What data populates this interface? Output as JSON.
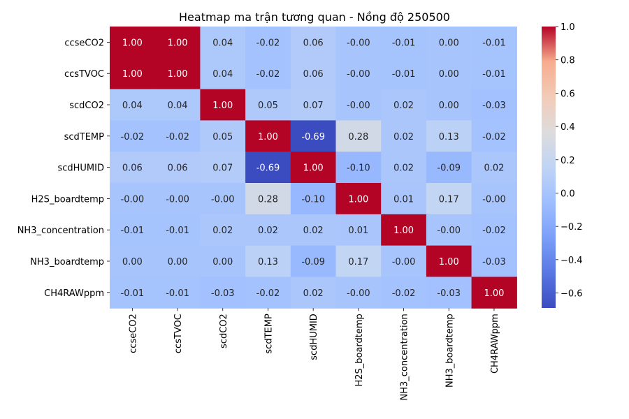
{
  "chart_data": {
    "type": "heatmap",
    "title": "Heatmap ma trận tương quan - Nồng độ 250500",
    "labels": [
      "ccseCO2",
      "ccsTVOC",
      "scdCO2",
      "scdTEMP",
      "scdHUMID",
      "H2S_boardtemp",
      "NH3_concentration",
      "NH3_boardtemp",
      "CH4RAWppm"
    ],
    "values": [
      [
        1.0,
        1.0,
        0.04,
        -0.02,
        0.06,
        -0.0,
        -0.01,
        0.0,
        -0.01
      ],
      [
        1.0,
        1.0,
        0.04,
        -0.02,
        0.06,
        -0.0,
        -0.01,
        0.0,
        -0.01
      ],
      [
        0.04,
        0.04,
        1.0,
        0.05,
        0.07,
        -0.0,
        0.02,
        0.0,
        -0.03
      ],
      [
        -0.02,
        -0.02,
        0.05,
        1.0,
        -0.69,
        0.28,
        0.02,
        0.13,
        -0.02
      ],
      [
        0.06,
        0.06,
        0.07,
        -0.69,
        1.0,
        -0.1,
        0.02,
        -0.09,
        0.02
      ],
      [
        -0.0,
        -0.0,
        -0.0,
        0.28,
        -0.1,
        1.0,
        0.01,
        0.17,
        -0.0
      ],
      [
        -0.01,
        -0.01,
        0.02,
        0.02,
        0.02,
        0.01,
        1.0,
        -0.0,
        -0.02
      ],
      [
        0.0,
        0.0,
        0.0,
        0.13,
        -0.09,
        0.17,
        -0.0,
        1.0,
        -0.03
      ],
      [
        -0.01,
        -0.01,
        -0.03,
        -0.02,
        0.02,
        -0.0,
        -0.02,
        -0.03,
        1.0
      ]
    ],
    "value_labels": [
      [
        "1.00",
        "1.00",
        "0.04",
        "-0.02",
        "0.06",
        "-0.00",
        "-0.01",
        "0.00",
        "-0.01"
      ],
      [
        "1.00",
        "1.00",
        "0.04",
        "-0.02",
        "0.06",
        "-0.00",
        "-0.01",
        "0.00",
        "-0.01"
      ],
      [
        "0.04",
        "0.04",
        "1.00",
        "0.05",
        "0.07",
        "-0.00",
        "0.02",
        "0.00",
        "-0.03"
      ],
      [
        "-0.02",
        "-0.02",
        "0.05",
        "1.00",
        "-0.69",
        "0.28",
        "0.02",
        "0.13",
        "-0.02"
      ],
      [
        "0.06",
        "0.06",
        "0.07",
        "-0.69",
        "1.00",
        "-0.10",
        "0.02",
        "-0.09",
        "0.02"
      ],
      [
        "-0.00",
        "-0.00",
        "-0.00",
        "0.28",
        "-0.10",
        "1.00",
        "0.01",
        "0.17",
        "-0.00"
      ],
      [
        "-0.01",
        "-0.01",
        "0.02",
        "0.02",
        "0.02",
        "0.01",
        "1.00",
        "-0.00",
        "-0.02"
      ],
      [
        "0.00",
        "0.00",
        "0.00",
        "0.13",
        "-0.09",
        "0.17",
        "-0.00",
        "1.00",
        "-0.03"
      ],
      [
        "-0.01",
        "-0.01",
        "-0.03",
        "-0.02",
        "0.02",
        "-0.00",
        "-0.02",
        "-0.03",
        "1.00"
      ]
    ],
    "colormap": "coolwarm",
    "vmin": -0.69,
    "vmax": 1.0,
    "colorbar_ticks": [
      "1.0",
      "0.8",
      "0.6",
      "0.4",
      "0.2",
      "0.0",
      "−0.2",
      "−0.4",
      "−0.6"
    ],
    "colorbar_tick_values": [
      1.0,
      0.8,
      0.6,
      0.4,
      0.2,
      0.0,
      -0.2,
      -0.4,
      -0.6
    ],
    "legend_position": "right"
  }
}
